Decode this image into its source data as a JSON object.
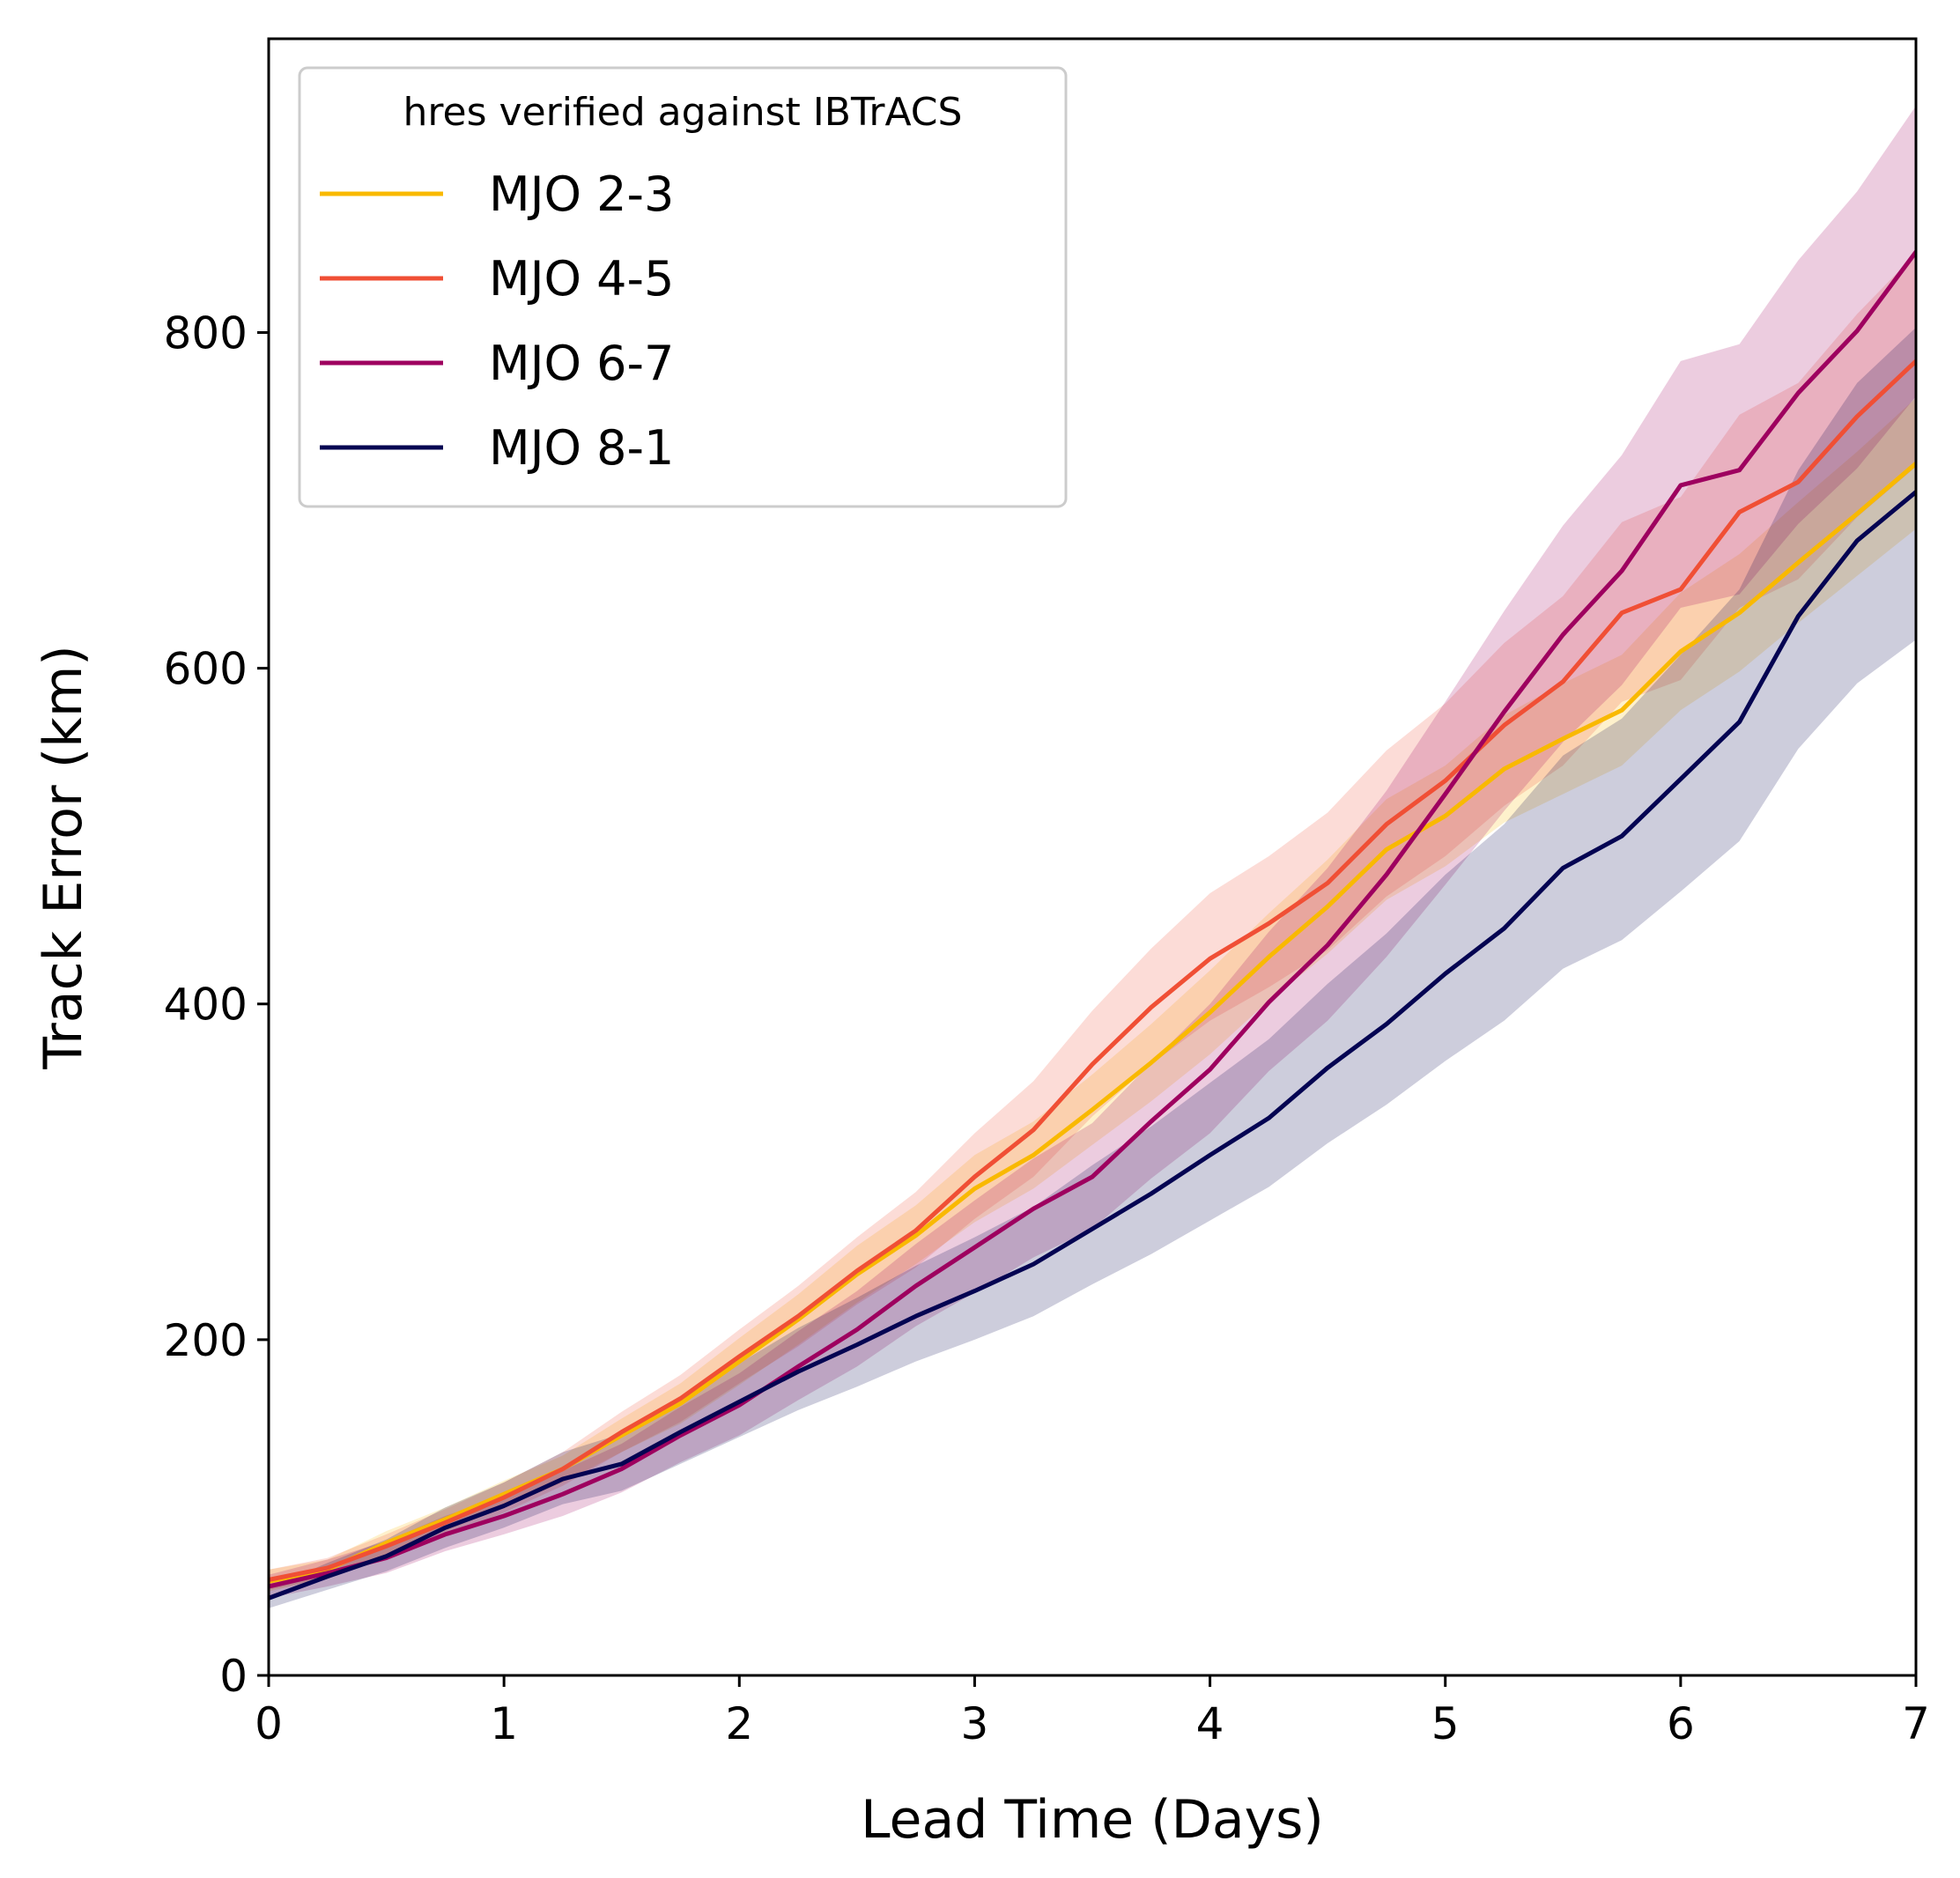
{
  "chart_data": {
    "type": "line",
    "xlabel": "Lead Time (Days)",
    "ylabel": "Track Error (km)",
    "xlim": [
      0,
      7
    ],
    "ylim": [
      0,
      975
    ],
    "xticks": [
      0,
      1,
      2,
      3,
      4,
      5,
      6,
      7
    ],
    "yticks": [
      0,
      200,
      400,
      600,
      800
    ],
    "grid": false,
    "legend": {
      "title": "hres verified against IBTrACS",
      "position": "top-left"
    },
    "x": [
      0,
      0.25,
      0.5,
      0.75,
      1,
      1.25,
      1.5,
      1.75,
      2,
      2.25,
      2.5,
      2.75,
      3,
      3.25,
      3.5,
      3.75,
      4,
      4.25,
      4.5,
      4.75,
      5,
      5.25,
      5.5,
      5.75,
      6,
      6.25,
      6.5,
      6.75,
      7
    ],
    "series": [
      {
        "name": "MJO 2-3",
        "color": "#f9b900",
        "values": [
          56,
          63,
          79,
          93,
          108,
          123,
          143,
          162,
          187,
          212,
          239,
          262,
          290,
          310,
          337,
          365,
          395,
          428,
          458,
          492,
          512,
          540,
          558,
          575,
          610,
          633,
          663,
          692,
          722
        ],
        "lower": [
          50,
          58,
          72,
          86,
          100,
          115,
          133,
          150,
          173,
          197,
          222,
          245,
          270,
          290,
          316,
          342,
          370,
          402,
          430,
          462,
          482,
          508,
          525,
          542,
          575,
          598,
          627,
          655,
          683
        ],
        "upper": [
          63,
          69,
          86,
          100,
          116,
          131,
          153,
          174,
          201,
          227,
          256,
          280,
          310,
          330,
          358,
          388,
          420,
          454,
          486,
          522,
          542,
          572,
          591,
          608,
          645,
          668,
          699,
          729,
          761
        ]
      },
      {
        "name": "MJO 4-5",
        "color": "#f04f35",
        "values": [
          57,
          64,
          77,
          91,
          106,
          123,
          145,
          165,
          190,
          214,
          241,
          265,
          297,
          325,
          364,
          398,
          427,
          448,
          472,
          507,
          533,
          566,
          592,
          633,
          647,
          693,
          711,
          750,
          783
        ],
        "lower": [
          51,
          58,
          70,
          83,
          97,
          113,
          133,
          151,
          174,
          196,
          221,
          243,
          272,
          297,
          333,
          364,
          390,
          410,
          432,
          464,
          488,
          518,
          542,
          580,
          593,
          636,
          653,
          690,
          720
        ],
        "upper": [
          63,
          70,
          84,
          99,
          115,
          133,
          157,
          179,
          206,
          232,
          261,
          288,
          323,
          354,
          396,
          433,
          466,
          488,
          514,
          551,
          579,
          615,
          643,
          687,
          702,
          751,
          770,
          811,
          847
        ]
      },
      {
        "name": "MJO 6-7",
        "color": "#9e005f",
        "values": [
          53,
          61,
          70,
          84,
          95,
          108,
          123,
          143,
          161,
          184,
          206,
          232,
          255,
          278,
          297,
          330,
          361,
          401,
          435,
          477,
          525,
          574,
          620,
          658,
          709,
          718,
          764,
          801,
          848
        ],
        "lower": [
          46,
          53,
          61,
          74,
          84,
          95,
          109,
          127,
          143,
          164,
          184,
          208,
          228,
          249,
          266,
          296,
          323,
          360,
          390,
          428,
          471,
          515,
          556,
          590,
          636,
          644,
          686,
          719,
          762
        ],
        "upper": [
          60,
          69,
          80,
          95,
          107,
          122,
          138,
          160,
          180,
          205,
          229,
          257,
          283,
          308,
          329,
          365,
          400,
          443,
          481,
          527,
          580,
          634,
          685,
          727,
          783,
          793,
          843,
          884,
          935
        ]
      },
      {
        "name": "MJO 8-1",
        "color": "#040452",
        "values": [
          46,
          59,
          71,
          88,
          101,
          117,
          126,
          145,
          163,
          181,
          197,
          214,
          229,
          245,
          266,
          287,
          310,
          332,
          362,
          388,
          418,
          445,
          481,
          500,
          534,
          568,
          631,
          676,
          705
        ],
        "lower": [
          40,
          51,
          62,
          76,
          88,
          102,
          110,
          126,
          142,
          158,
          172,
          187,
          200,
          214,
          233,
          251,
          271,
          291,
          317,
          340,
          366,
          390,
          421,
          438,
          467,
          497,
          552,
          591,
          617
        ],
        "upper": [
          52,
          67,
          81,
          100,
          115,
          133,
          144,
          165,
          186,
          207,
          225,
          244,
          261,
          279,
          304,
          327,
          353,
          379,
          412,
          442,
          477,
          507,
          548,
          570,
          608,
          647,
          718,
          770,
          803
        ]
      }
    ]
  }
}
